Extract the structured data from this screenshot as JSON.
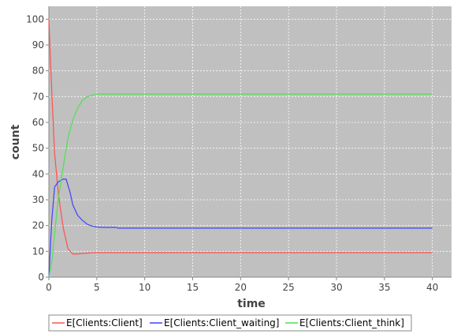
{
  "chart_data": {
    "type": "line",
    "xlabel": "time",
    "ylabel": "count",
    "xlim": [
      0,
      42
    ],
    "ylim": [
      0,
      105
    ],
    "xticks": [
      "0",
      "5",
      "10",
      "15",
      "20",
      "25",
      "30",
      "35",
      "40"
    ],
    "yticks": [
      "0",
      "10",
      "20",
      "30",
      "40",
      "50",
      "60",
      "70",
      "80",
      "90",
      "100"
    ],
    "grid": true,
    "legend_position": "bottom",
    "colors": {
      "plot_background": "#c0c0c0",
      "grid": "#ffffff"
    },
    "series": [
      {
        "name": "E[Clients:Client]",
        "color": "#ff5050",
        "x": [
          0,
          0.3,
          0.6,
          1.0,
          1.5,
          2.0,
          2.5,
          3.0,
          3.5,
          4.0,
          4.5,
          5.0,
          6.0,
          8.0,
          10.0,
          20.0,
          30.0,
          40.0
        ],
        "y": [
          100,
          72,
          48,
          32,
          19,
          11,
          9,
          9,
          9.2,
          9.3,
          9.5,
          9.5,
          9.5,
          9.5,
          9.5,
          9.5,
          9.5,
          9.5
        ]
      },
      {
        "name": "E[Clients:Client_waiting]",
        "color": "#4040ff",
        "x": [
          0,
          0.3,
          0.6,
          1.0,
          1.5,
          1.8,
          2.2,
          2.5,
          3.0,
          3.5,
          4.0,
          4.5,
          5.0,
          6.0,
          7.0,
          7.2,
          10.0,
          20.0,
          30.0,
          40.0
        ],
        "y": [
          0,
          22,
          35,
          37,
          38,
          38,
          33,
          28,
          24,
          22,
          20.5,
          19.8,
          19.4,
          19.3,
          19.3,
          19,
          19,
          19,
          19,
          19
        ]
      },
      {
        "name": "E[Clients:Client_think]",
        "color": "#50e050",
        "x": [
          0,
          0.3,
          0.6,
          1.0,
          1.5,
          2.0,
          2.5,
          3.0,
          3.5,
          4.0,
          4.5,
          5.0,
          6.0,
          8.0,
          10.0,
          20.0,
          30.0,
          40.0
        ],
        "y": [
          0,
          6,
          17,
          31,
          43,
          54,
          61,
          65.5,
          68.5,
          70,
          70.5,
          71,
          71,
          71,
          71,
          71,
          71,
          71
        ]
      }
    ]
  }
}
